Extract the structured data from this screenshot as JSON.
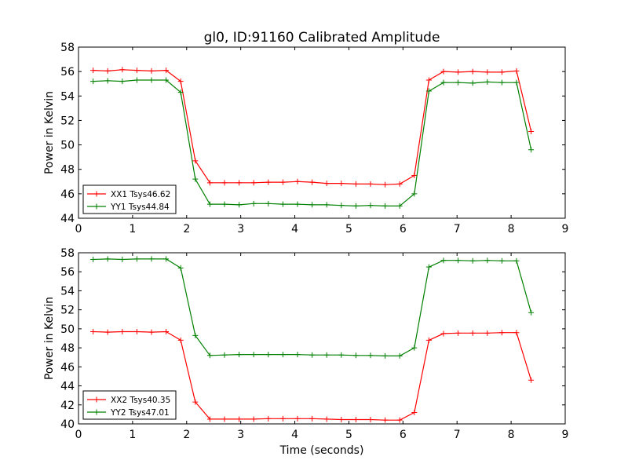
{
  "title": "gl0, ID:91160 Calibrated Amplitude",
  "xlabel": "Time (seconds)",
  "colors": {
    "red": "#ff0000",
    "green": "#008000",
    "frame": "#000000",
    "background": "#ffffff"
  },
  "chart_data": [
    {
      "type": "line",
      "title": "gl0, ID:91160 Calibrated Amplitude",
      "xlabel": "",
      "ylabel": "Power in Kelvin",
      "xlim": [
        0,
        9
      ],
      "ylim": [
        44,
        58
      ],
      "xticks": [
        "0",
        "1",
        "2",
        "3",
        "4",
        "5",
        "6",
        "7",
        "8",
        "9"
      ],
      "yticks": [
        "44",
        "46",
        "48",
        "50",
        "52",
        "54",
        "56",
        "58"
      ],
      "grid": false,
      "legend_position": "lower-left",
      "x": [
        0.27,
        0.54,
        0.81,
        1.08,
        1.35,
        1.62,
        1.89,
        2.16,
        2.43,
        2.7,
        2.97,
        3.24,
        3.51,
        3.78,
        4.05,
        4.32,
        4.59,
        4.86,
        5.13,
        5.4,
        5.67,
        5.94,
        6.21,
        6.48,
        6.75,
        7.02,
        7.29,
        7.56,
        7.83,
        8.1,
        8.37
      ],
      "series": [
        {
          "name": "XX1 Tsys46.62",
          "color": "#ff0000",
          "values": [
            56.1,
            56.05,
            56.15,
            56.1,
            56.05,
            56.1,
            55.2,
            48.7,
            46.9,
            46.9,
            46.9,
            46.9,
            46.95,
            46.95,
            47.0,
            46.95,
            46.85,
            46.85,
            46.8,
            46.8,
            46.75,
            46.8,
            47.5,
            55.3,
            56.0,
            55.95,
            56.0,
            55.95,
            55.95,
            56.05,
            51.1
          ]
        },
        {
          "name": "YY1 Tsys44.84",
          "color": "#008000",
          "values": [
            55.2,
            55.25,
            55.2,
            55.3,
            55.3,
            55.3,
            54.3,
            47.2,
            45.15,
            45.15,
            45.1,
            45.2,
            45.2,
            45.15,
            45.15,
            45.1,
            45.1,
            45.05,
            45.0,
            45.05,
            45.0,
            45.0,
            46.0,
            54.4,
            55.1,
            55.1,
            55.05,
            55.15,
            55.1,
            55.1,
            49.6
          ]
        }
      ]
    },
    {
      "type": "line",
      "title": "",
      "xlabel": "Time (seconds)",
      "ylabel": "Power in Kelvin",
      "xlim": [
        0,
        9
      ],
      "ylim": [
        40,
        58
      ],
      "xticks": [
        "0",
        "1",
        "2",
        "3",
        "4",
        "5",
        "6",
        "7",
        "8",
        "9"
      ],
      "yticks": [
        "40",
        "42",
        "44",
        "46",
        "48",
        "50",
        "52",
        "54",
        "56",
        "58"
      ],
      "grid": false,
      "legend_position": "lower-left",
      "x": [
        0.27,
        0.54,
        0.81,
        1.08,
        1.35,
        1.62,
        1.89,
        2.16,
        2.43,
        2.7,
        2.97,
        3.24,
        3.51,
        3.78,
        4.05,
        4.32,
        4.59,
        4.86,
        5.13,
        5.4,
        5.67,
        5.94,
        6.21,
        6.48,
        6.75,
        7.02,
        7.29,
        7.56,
        7.83,
        8.1,
        8.37
      ],
      "series": [
        {
          "name": "XX2 Tsys40.35",
          "color": "#ff0000",
          "values": [
            49.7,
            49.65,
            49.7,
            49.7,
            49.65,
            49.7,
            48.8,
            42.3,
            40.5,
            40.5,
            40.5,
            40.5,
            40.55,
            40.55,
            40.55,
            40.55,
            40.5,
            40.45,
            40.45,
            40.45,
            40.4,
            40.4,
            41.2,
            48.8,
            49.5,
            49.55,
            49.55,
            49.55,
            49.6,
            49.6,
            44.6
          ]
        },
        {
          "name": "YY2 Tsys47.01",
          "color": "#008000",
          "values": [
            57.3,
            57.35,
            57.3,
            57.35,
            57.35,
            57.35,
            56.4,
            49.3,
            47.2,
            47.25,
            47.3,
            47.3,
            47.3,
            47.3,
            47.3,
            47.25,
            47.25,
            47.25,
            47.2,
            47.2,
            47.15,
            47.15,
            48.0,
            56.5,
            57.2,
            57.2,
            57.15,
            57.2,
            57.15,
            57.15,
            51.7
          ]
        }
      ]
    }
  ]
}
